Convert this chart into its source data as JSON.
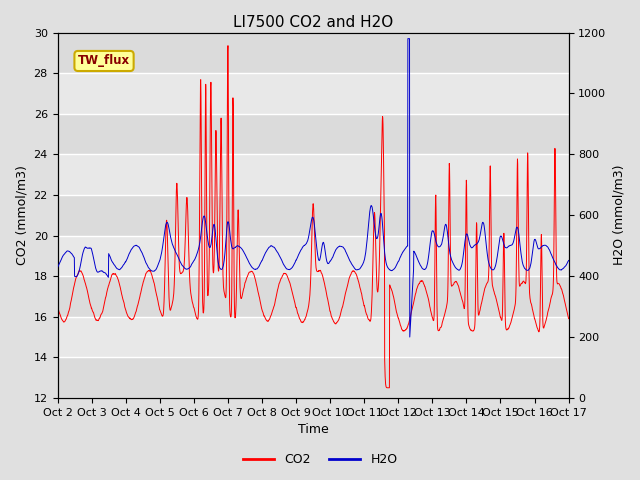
{
  "title": "LI7500 CO2 and H2O",
  "xlabel": "Time",
  "ylabel_left": "CO2 (mmol/m3)",
  "ylabel_right": "H2O (mmol/m3)",
  "ylim_left": [
    12,
    30
  ],
  "ylim_right": [
    0,
    1200
  ],
  "yticks_left": [
    12,
    14,
    16,
    18,
    20,
    22,
    24,
    26,
    28,
    30
  ],
  "yticks_right": [
    0,
    200,
    400,
    600,
    800,
    1000,
    1200
  ],
  "xtick_labels": [
    "Oct 2",
    "Oct 3",
    "Oct 4",
    "Oct 5",
    "Oct 6",
    "Oct 7",
    "Oct 8",
    "Oct 9",
    "Oct 10",
    "Oct 11",
    "Oct 12",
    "Oct 13",
    "Oct 14",
    "Oct 15",
    "Oct 16",
    "Oct 17"
  ],
  "co2_color": "#FF0000",
  "h2o_color": "#0000CC",
  "background_color": "#E0E0E0",
  "plot_bg_color": "#E8E8E8",
  "legend_label": "TW_flux",
  "legend_box_color": "#FFFF99",
  "legend_box_edge": "#CCAA00",
  "grid_color": "#FFFFFF",
  "title_fontsize": 11,
  "axis_fontsize": 9,
  "tick_fontsize": 8
}
